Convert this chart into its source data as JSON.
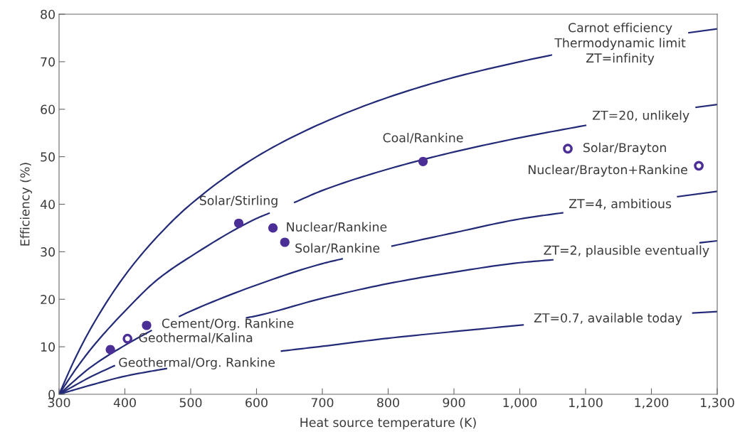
{
  "chart_data": {
    "type": "line",
    "xlabel": "Heat source temperature (K)",
    "ylabel": "Efficiency (%)",
    "xlim": [
      300,
      1300
    ],
    "ylim": [
      0,
      80
    ],
    "xticks": [
      300,
      400,
      500,
      600,
      700,
      800,
      900,
      {
        "value": 1000,
        "label": "1,000"
      },
      {
        "value": 1100,
        "label": "1,100"
      },
      {
        "value": 1200,
        "label": "1,200"
      },
      {
        "value": 1300,
        "label": "1,300"
      }
    ],
    "yticks": [
      0,
      10,
      20,
      30,
      40,
      50,
      60,
      70,
      80
    ],
    "grid": false,
    "legend": false,
    "series": [
      {
        "name": "Carnot efficiency\nThermodynamic limit\nZT=infinity",
        "color": "#232a78",
        "x": [
          300,
          325,
          350,
          400,
          450,
          500,
          600,
          700,
          800,
          900,
          1000,
          1048,
          1150,
          1257,
          1300
        ],
        "values": [
          0,
          7.7,
          14.3,
          25,
          33.3,
          40,
          50,
          57.1,
          62.5,
          66.7,
          70,
          71.4,
          null,
          76.1,
          76.9
        ]
      },
      {
        "name": "ZT=20, unlikely",
        "color": "#232a78",
        "x": [
          300,
          325,
          350,
          400,
          450,
          500,
          600,
          619,
          640,
          658,
          700,
          800,
          900,
          1000,
          1100,
          1180,
          1268,
          1300
        ],
        "values": [
          0,
          5.2,
          9.8,
          17.5,
          24.2,
          29,
          37,
          38.1,
          null,
          40.4,
          42.9,
          47.4,
          51,
          54,
          56.6,
          null,
          60.4,
          61
        ]
      },
      {
        "name": "ZT=4, ambitious",
        "color": "#232a78",
        "x": [
          300,
          350,
          400,
          440,
          460,
          483,
          500,
          600,
          700,
          730,
          770,
          806,
          900,
          1000,
          1065,
          1150,
          1240,
          1300
        ],
        "values": [
          0,
          5.9,
          10.3,
          13.4,
          null,
          16.4,
          17.5,
          23,
          27.5,
          28.5,
          null,
          31.2,
          34,
          36.9,
          38.2,
          null,
          41.6,
          42.7
        ]
      },
      {
        "name": "ZT=2, plausible eventually",
        "color": "#232a78",
        "x": [
          300,
          350,
          384,
          480,
          585,
          600,
          700,
          800,
          900,
          1000,
          1050,
          1160,
          1274,
          1300
        ],
        "values": [
          0,
          3.8,
          6,
          null,
          16.1,
          16.5,
          20.2,
          23.3,
          25.7,
          27.7,
          28.3,
          null,
          31.9,
          32.3
        ]
      },
      {
        "name": "ZT=0.7, available today",
        "color": "#232a78",
        "x": [
          300,
          350,
          400,
          450,
          463,
          550,
          638,
          700,
          800,
          900,
          1005,
          1130,
          1263,
          1300
        ],
        "values": [
          0,
          2,
          3.8,
          5.1,
          5.4,
          null,
          9.1,
          10.1,
          11.8,
          13.2,
          14.6,
          null,
          17.1,
          17.4
        ]
      },
      {
        "type": "scatter",
        "marker": "circle",
        "color": "#4b2f96",
        "x": [
          378,
          433,
          573,
          625,
          643,
          853
        ],
        "values": [
          9.4,
          14.5,
          36,
          35,
          32,
          49
        ]
      },
      {
        "type": "scatter",
        "marker": "circle",
        "color": "#4b2f96",
        "x": [
          404,
          1073,
          1272
        ],
        "values": [
          11.7,
          51.7,
          48.1
        ]
      }
    ],
    "annotations": [
      {
        "text": "Geothermal/Org. Rankine",
        "x": 378,
        "y": 9.4
      },
      {
        "text": "Geothermal/Kalina",
        "x": 404,
        "y": 11.7
      },
      {
        "text": "Cement/Org. Rankine",
        "x": 433,
        "y": 14.5
      },
      {
        "text": "Solar/Stirling",
        "x": 573,
        "y": 36
      },
      {
        "text": "Nuclear/Rankine",
        "x": 625,
        "y": 35
      },
      {
        "text": "Solar/Rankine",
        "x": 643,
        "y": 32
      },
      {
        "text": "Coal/Rankine",
        "x": 853,
        "y": 49
      },
      {
        "text": "Solar/Brayton",
        "x": 1073,
        "y": 51.7
      },
      {
        "text": "Nuclear/Brayton+Rankine",
        "x": 1272,
        "y": 48.1
      }
    ]
  }
}
